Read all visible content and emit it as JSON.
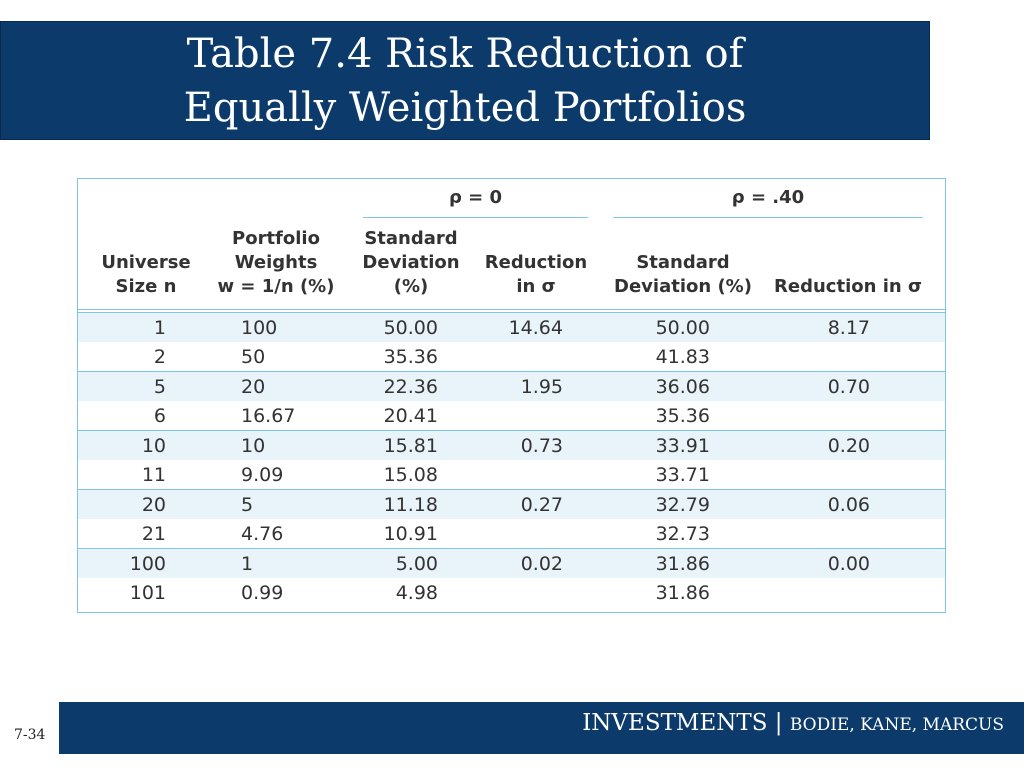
{
  "title": {
    "line1": "Table 7.4 Risk Reduction of",
    "line2": "Equally Weighted Portfolios"
  },
  "table": {
    "group_headers": {
      "rho0": "ρ = 0",
      "rho40": "ρ = .40"
    },
    "headers": {
      "universe": [
        "Universe",
        "Size n"
      ],
      "weights": [
        "Portfolio",
        "Weights",
        "w = 1/n (%)"
      ],
      "sd0": [
        "Standard",
        "Deviation",
        "(%)"
      ],
      "red0": [
        "Reduction",
        "in σ"
      ],
      "sd40": [
        "Standard",
        "Deviation (%)"
      ],
      "red40": [
        "Reduction in σ"
      ]
    },
    "rows": [
      {
        "n": "1",
        "w": "100",
        "sd0": "50.00",
        "red0": "14.64",
        "sd40": "50.00",
        "red40": "8.17",
        "shade": true
      },
      {
        "n": "2",
        "w": "50",
        "sd0": "35.36",
        "red0": "",
        "sd40": "41.83",
        "red40": "",
        "shade": false
      },
      {
        "n": "5",
        "w": "20",
        "sd0": "22.36",
        "red0": "1.95",
        "sd40": "36.06",
        "red40": "0.70",
        "shade": true
      },
      {
        "n": "6",
        "w": "16.67",
        "sd0": "20.41",
        "red0": "",
        "sd40": "35.36",
        "red40": "",
        "shade": false
      },
      {
        "n": "10",
        "w": "10",
        "sd0": "15.81",
        "red0": "0.73",
        "sd40": "33.91",
        "red40": "0.20",
        "shade": true
      },
      {
        "n": "11",
        "w": "9.09",
        "sd0": "15.08",
        "red0": "",
        "sd40": "33.71",
        "red40": "",
        "shade": false
      },
      {
        "n": "20",
        "w": "5",
        "sd0": "11.18",
        "red0": "0.27",
        "sd40": "32.79",
        "red40": "0.06",
        "shade": true
      },
      {
        "n": "21",
        "w": "4.76",
        "sd0": "10.91",
        "red0": "",
        "sd40": "32.73",
        "red40": "",
        "shade": false
      },
      {
        "n": "100",
        "w": "1",
        "sd0": "5.00",
        "red0": "0.02",
        "sd40": "31.86",
        "red40": "0.00",
        "shade": true
      },
      {
        "n": "101",
        "w": "0.99",
        "sd0": "4.98",
        "red0": "",
        "sd40": "31.86",
        "red40": "",
        "shade": false
      }
    ]
  },
  "footer": {
    "main": "INVESTMENTS | ",
    "sub": "BODIE, KANE, MARCUS",
    "slide_number": "7-34"
  },
  "colors": {
    "banner": "#0b3a6b",
    "table_rule": "#7fc6e0",
    "row_shade": "#e9f3fa"
  }
}
